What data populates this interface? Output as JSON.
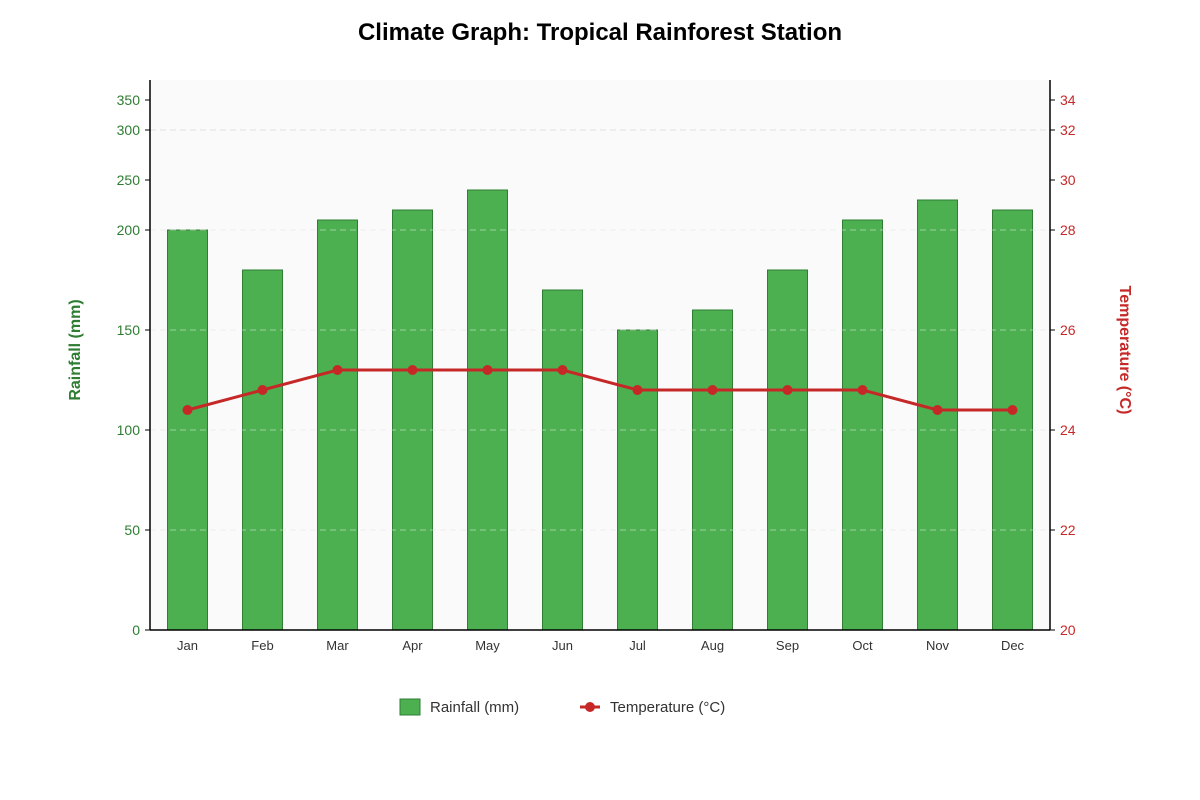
{
  "chart_data": {
    "type": "bar+line",
    "title": "Climate Graph: Tropical Rainforest Station",
    "categories": [
      "Jan",
      "Feb",
      "Mar",
      "Apr",
      "May",
      "Jun",
      "Jul",
      "Aug",
      "Sep",
      "Oct",
      "Nov",
      "Dec"
    ],
    "series": [
      {
        "name": "Rainfall (mm)",
        "type": "bar",
        "axis": "left",
        "color": "#4caf50",
        "values": [
          200,
          180,
          210,
          220,
          240,
          170,
          150,
          160,
          180,
          210,
          230,
          220
        ]
      },
      {
        "name": "Temperature (°C)",
        "type": "line",
        "axis": "right",
        "color": "#c62828",
        "values": [
          24.4,
          24.8,
          25.2,
          25.2,
          25.2,
          25.2,
          24.8,
          24.8,
          24.8,
          24.8,
          24.4,
          24.4
        ]
      }
    ],
    "y_left": {
      "label": "Rainfall (mm)",
      "ticks": [
        0,
        50,
        100,
        150,
        200,
        250,
        300,
        350
      ]
    },
    "y_right": {
      "label": "Temperature (°C)",
      "ticks": [
        20,
        22,
        24,
        26,
        28,
        30,
        32,
        34
      ]
    },
    "grid": true,
    "legend_position": "bottom-center"
  }
}
